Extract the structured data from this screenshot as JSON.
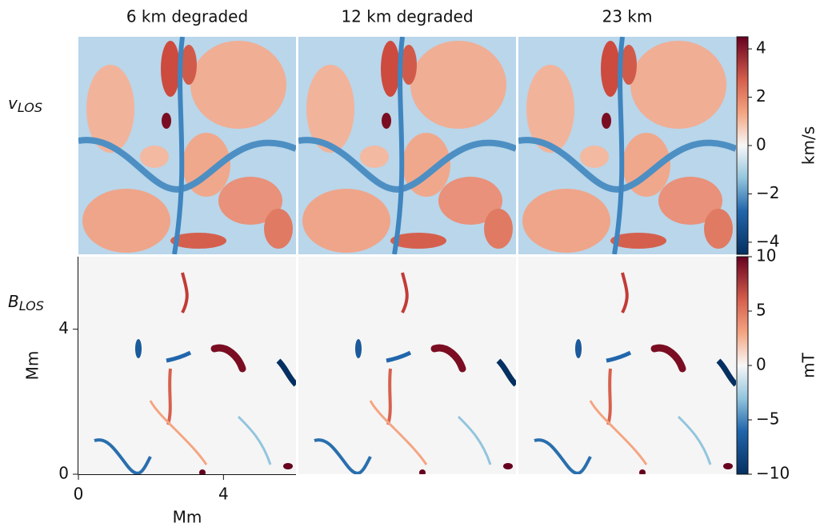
{
  "chart_data": {
    "type": "heatmap-grid",
    "columns": [
      "6 km degraded",
      "12 km degraded",
      "23 km"
    ],
    "rows": [
      {
        "label": "v",
        "label_sub": "LOS",
        "colorbar_label": "km/s",
        "clim": [
          -4.5,
          4.5
        ],
        "cticks": [
          {
            "value": -4,
            "label": "−4"
          },
          {
            "value": -2,
            "label": "−2"
          },
          0,
          2,
          4
        ]
      },
      {
        "label": "B",
        "label_sub": "LOS",
        "colorbar_label": "mT",
        "clim": [
          -10,
          10
        ],
        "cticks": [
          {
            "value": -10,
            "label": "−10"
          },
          {
            "value": -5,
            "label": "−5"
          },
          0,
          5,
          10
        ]
      }
    ],
    "xlabel": "Mm",
    "ylabel": "Mm",
    "xlim": [
      0,
      6
    ],
    "ylim": [
      0,
      6
    ],
    "xticks": [
      0,
      4
    ],
    "yticks": [
      0,
      4
    ]
  }
}
